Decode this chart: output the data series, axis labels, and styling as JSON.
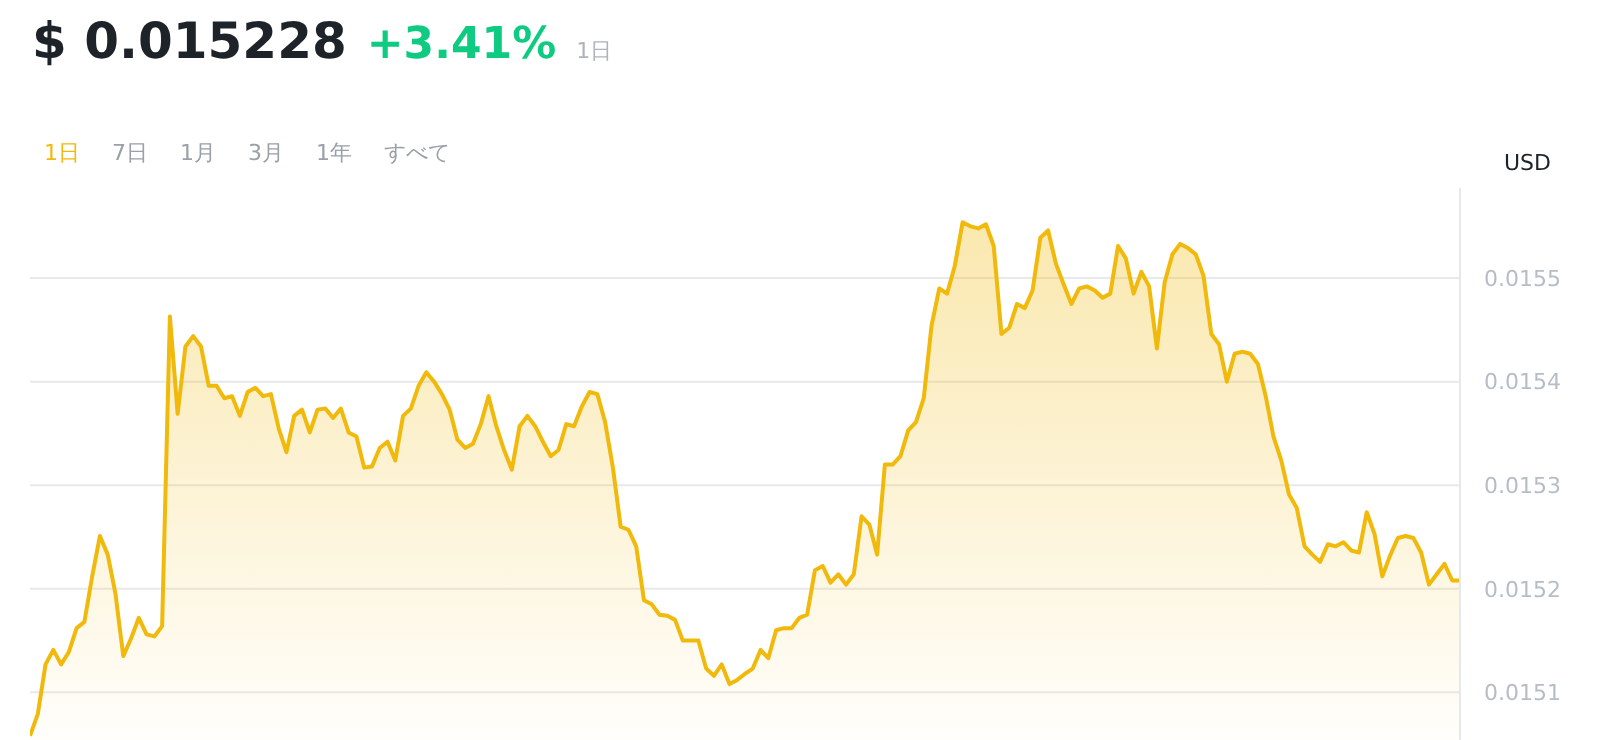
{
  "chart_data": {
    "type": "area",
    "title": "$ 0.015228",
    "subtitle": "+3.41%",
    "ylabel": "USD",
    "annotations": [
      "1日",
      "1日",
      "7日",
      "1月",
      "3月",
      "1年",
      "すべて"
    ],
    "categories": [
      null,
      null,
      null,
      null,
      null,
      null,
      null,
      null,
      null,
      null,
      null,
      null,
      null,
      null,
      null,
      null,
      null,
      null,
      null,
      null,
      null,
      null,
      null,
      null,
      null,
      null,
      null,
      null,
      null,
      null,
      null,
      null,
      null,
      null,
      null,
      null,
      null,
      null,
      null,
      null,
      null,
      null,
      null,
      null,
      null,
      null,
      null,
      null,
      null,
      null,
      null,
      null,
      null,
      null,
      null,
      null,
      null,
      null,
      null,
      null,
      null,
      null,
      null,
      null,
      null,
      null,
      null,
      null,
      null,
      null,
      null,
      null,
      null,
      null,
      null,
      null,
      null,
      null,
      null,
      null,
      null,
      null,
      null,
      null,
      null,
      null,
      null,
      null,
      null,
      null,
      null,
      null,
      null,
      null,
      null,
      null,
      null,
      null,
      null,
      null,
      null,
      null,
      null,
      null,
      null,
      null,
      null,
      null,
      null,
      null,
      null,
      null,
      null,
      null,
      null,
      null,
      null,
      null,
      null,
      null,
      null,
      null,
      null,
      null,
      null,
      null,
      null,
      null,
      null,
      null,
      null,
      null,
      null,
      null,
      null,
      null,
      null,
      null,
      null,
      null,
      null,
      null,
      null,
      null,
      null,
      null,
      null,
      null,
      null,
      null,
      null,
      null,
      null,
      null,
      null,
      null,
      null,
      null,
      null,
      null,
      null,
      null,
      null,
      null,
      null,
      null,
      null,
      null,
      null,
      null,
      null,
      null,
      null,
      null,
      null,
      null,
      null,
      null,
      null,
      null,
      null,
      null,
      null,
      null,
      null
    ],
    "series": [
      {
        "color": "#f0b90b",
        "values": [
          0.015058,
          0.015079,
          0.015127,
          0.015141,
          0.015127,
          0.015139,
          0.015162,
          0.015168,
          0.015212,
          0.015251,
          0.015233,
          0.015195,
          0.015135,
          0.015152,
          0.015172,
          0.015156,
          0.015154,
          0.015164,
          0.015463,
          0.015369,
          0.015434,
          0.015444,
          0.015434,
          0.015396,
          0.015396,
          0.015384,
          0.015386,
          0.015367,
          0.01539,
          0.015394,
          0.015386,
          0.015388,
          0.015355,
          0.015332,
          0.015367,
          0.015373,
          0.015351,
          0.015373,
          0.015374,
          0.015365,
          0.015374,
          0.015351,
          0.015347,
          0.015317,
          0.015318,
          0.015336,
          0.015342,
          0.015324,
          0.015367,
          0.015374,
          0.015396,
          0.015409,
          0.0154,
          0.015388,
          0.015373,
          0.015344,
          0.015336,
          0.01534,
          0.015359,
          0.015386,
          0.015357,
          0.015334,
          0.015315,
          0.015357,
          0.015367,
          0.015357,
          0.015342,
          0.015328,
          0.015334,
          0.015359,
          0.015357,
          0.015376,
          0.01539,
          0.015388,
          0.015361,
          0.015317,
          0.01526,
          0.015257,
          0.015241,
          0.015189,
          0.015185,
          0.015175,
          0.015174,
          0.01517,
          0.01515,
          0.01515,
          0.01515,
          0.015123,
          0.015116,
          0.015127,
          0.015108,
          0.015112,
          0.015118,
          0.015123,
          0.015141,
          0.015133,
          0.01516,
          0.015162,
          0.015162,
          0.015172,
          0.015175,
          0.015218,
          0.015222,
          0.015206,
          0.015214,
          0.015204,
          0.015214,
          0.01527,
          0.015262,
          0.015233,
          0.01532,
          0.01532,
          0.015328,
          0.015353,
          0.015361,
          0.015384,
          0.015454,
          0.01549,
          0.015485,
          0.015512,
          0.015554,
          0.01555,
          0.015548,
          0.015552,
          0.015531,
          0.015446,
          0.015452,
          0.015475,
          0.015471,
          0.015488,
          0.015539,
          0.015546,
          0.015514,
          0.015494,
          0.015475,
          0.01549,
          0.015492,
          0.015488,
          0.015481,
          0.015485,
          0.015531,
          0.015519,
          0.015485,
          0.015506,
          0.015492,
          0.015432,
          0.015496,
          0.015523,
          0.015533,
          0.015529,
          0.015523,
          0.015502,
          0.015446,
          0.015436,
          0.0154,
          0.015427,
          0.015429,
          0.015427,
          0.015417,
          0.015386,
          0.015347,
          0.015324,
          0.015291,
          0.015278,
          0.015241,
          0.015233,
          0.015226,
          0.015243,
          0.015241,
          0.015245,
          0.015237,
          0.015235,
          0.015274,
          0.015253,
          0.015212,
          0.015232,
          0.015249,
          0.015251,
          0.015249,
          0.015235,
          0.015204,
          0.015214,
          0.015224,
          0.015208,
          0.015208
        ]
      }
    ],
    "ylim": [
      0.015054,
      0.015587
    ],
    "yticks": [
      0.0151,
      0.0152,
      0.0153,
      0.0154,
      0.0155
    ],
    "grid": "y",
    "legend": false,
    "tick_labels": "y"
  }
}
